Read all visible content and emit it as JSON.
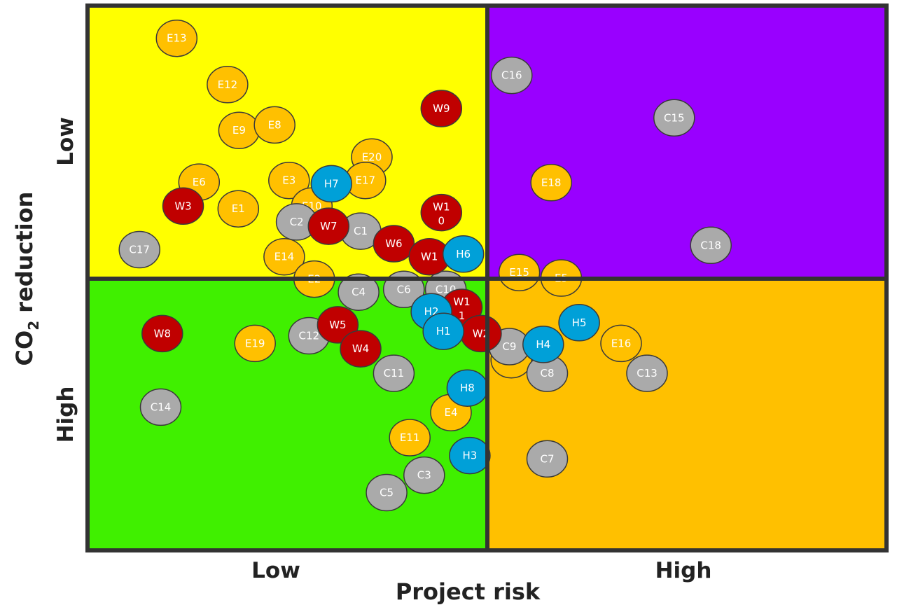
{
  "chart_data": {
    "type": "scatter",
    "xlabel": "Project risk",
    "ylabel_prefix": "CO",
    "ylabel_sub": "2",
    "ylabel_suffix": " reduction",
    "x_tick_labels": [
      "Low",
      "High"
    ],
    "y_tick_labels": [
      "Low",
      "High"
    ],
    "xlim": [
      0,
      10
    ],
    "ylim": [
      0,
      10
    ],
    "grid": false,
    "legend": "none",
    "quadrants": [
      {
        "name": "low-risk-low-co2",
        "color": "#ffff00"
      },
      {
        "name": "high-risk-low-co2",
        "color": "#9900ff"
      },
      {
        "name": "low-risk-high-co2",
        "color": "#40f000"
      },
      {
        "name": "high-risk-high-co2",
        "color": "#ffc000"
      }
    ],
    "category_colors": {
      "E": "#ffc000",
      "C": "#aaaaaa",
      "W": "#c00000",
      "H": "#00a0d8"
    },
    "points": [
      {
        "label": "E13",
        "cat": "E",
        "x": 2.23,
        "y": 9.4
      },
      {
        "label": "E12",
        "cat": "E",
        "x": 3.5,
        "y": 8.55
      },
      {
        "label": "E9",
        "cat": "E",
        "x": 3.79,
        "y": 7.71
      },
      {
        "label": "E8",
        "cat": "E",
        "x": 4.68,
        "y": 7.81
      },
      {
        "label": "E20",
        "cat": "E",
        "x": 7.11,
        "y": 7.22
      },
      {
        "label": "E6",
        "cat": "E",
        "x": 2.79,
        "y": 6.76
      },
      {
        "label": "E3",
        "cat": "E",
        "x": 5.04,
        "y": 6.79
      },
      {
        "label": "E17",
        "cat": "E",
        "x": 6.95,
        "y": 6.79
      },
      {
        "label": "E1",
        "cat": "E",
        "x": 3.77,
        "y": 6.27
      },
      {
        "label": "E10",
        "cat": "E",
        "x": 5.61,
        "y": 6.32
      },
      {
        "label": "E14",
        "cat": "E",
        "x": 4.92,
        "y": 5.39
      },
      {
        "label": "E2",
        "cat": "E",
        "x": 5.67,
        "y": 4.98
      },
      {
        "label": "E19",
        "cat": "E",
        "x": 4.19,
        "y": 3.8
      },
      {
        "label": "E11",
        "cat": "E",
        "x": 8.06,
        "y": 2.07
      },
      {
        "label": "E4",
        "cat": "E",
        "x": 9.09,
        "y": 2.53
      },
      {
        "label": "E7",
        "cat": "E",
        "x": 0.6,
        "y": 3.5
      },
      {
        "label": "E16",
        "cat": "E",
        "x": 3.35,
        "y": 3.8
      },
      {
        "label": "E15",
        "cat": "E",
        "x": 0.8,
        "y": 5.1
      },
      {
        "label": "E5",
        "cat": "E",
        "x": 1.85,
        "y": 5.0
      },
      {
        "label": "E18",
        "cat": "E",
        "x": 1.6,
        "y": 6.75
      },
      {
        "label": "C17",
        "cat": "C",
        "x": 1.3,
        "y": 5.52
      },
      {
        "label": "C2",
        "cat": "C",
        "x": 5.23,
        "y": 6.03
      },
      {
        "label": "C1",
        "cat": "C",
        "x": 6.83,
        "y": 5.86
      },
      {
        "label": "C4",
        "cat": "C",
        "x": 6.78,
        "y": 4.74
      },
      {
        "label": "C6",
        "cat": "C",
        "x": 7.91,
        "y": 4.79
      },
      {
        "label": "C10",
        "cat": "C",
        "x": 8.96,
        "y": 4.79
      },
      {
        "label": "C12",
        "cat": "C",
        "x": 5.54,
        "y": 3.94
      },
      {
        "label": "C11",
        "cat": "C",
        "x": 7.66,
        "y": 3.25
      },
      {
        "label": "C14",
        "cat": "C",
        "x": 1.83,
        "y": 2.63
      },
      {
        "label": "C3",
        "cat": "C",
        "x": 8.42,
        "y": 1.38
      },
      {
        "label": "C5",
        "cat": "C",
        "x": 7.48,
        "y": 1.06
      },
      {
        "label": "C16",
        "cat": "C",
        "x": 0.61,
        "y": 8.72
      },
      {
        "label": "C15",
        "cat": "C",
        "x": 4.68,
        "y": 7.94
      },
      {
        "label": "C18",
        "cat": "C",
        "x": 5.6,
        "y": 5.6
      },
      {
        "label": "C9",
        "cat": "C",
        "x": 0.55,
        "y": 3.74
      },
      {
        "label": "C8",
        "cat": "C",
        "x": 1.5,
        "y": 3.25
      },
      {
        "label": "C13",
        "cat": "C",
        "x": 4.0,
        "y": 3.25
      },
      {
        "label": "C7",
        "cat": "C",
        "x": 1.5,
        "y": 1.68
      },
      {
        "label": "W9",
        "cat": "W",
        "x": 8.85,
        "y": 8.11
      },
      {
        "label": "W3",
        "cat": "W",
        "x": 2.39,
        "y": 6.32
      },
      {
        "label": "W7",
        "cat": "W",
        "x": 6.03,
        "y": 5.95
      },
      {
        "label": "W10",
        "cat": "W",
        "x": 8.85,
        "y": 6.2
      },
      {
        "label": "W6",
        "cat": "W",
        "x": 7.66,
        "y": 5.63
      },
      {
        "label": "W1",
        "cat": "W",
        "x": 8.55,
        "y": 5.39
      },
      {
        "label": "W11",
        "cat": "W",
        "x": 9.36,
        "y": 4.46
      },
      {
        "label": "W5",
        "cat": "W",
        "x": 6.26,
        "y": 4.14
      },
      {
        "label": "W4",
        "cat": "W",
        "x": 6.83,
        "y": 3.7
      },
      {
        "label": "W8",
        "cat": "W",
        "x": 1.87,
        "y": 3.98
      },
      {
        "label": "W2",
        "cat": "W",
        "x": 9.84,
        "y": 3.98
      },
      {
        "label": "H7",
        "cat": "H",
        "x": 6.1,
        "y": 6.73
      },
      {
        "label": "H6",
        "cat": "H",
        "x": 9.4,
        "y": 5.44
      },
      {
        "label": "H2",
        "cat": "H",
        "x": 8.6,
        "y": 4.38
      },
      {
        "label": "H1",
        "cat": "H",
        "x": 8.9,
        "y": 4.02
      },
      {
        "label": "H8",
        "cat": "H",
        "x": 9.5,
        "y": 2.98
      },
      {
        "label": "H3",
        "cat": "H",
        "x": 9.56,
        "y": 1.74
      },
      {
        "label": "H4",
        "cat": "H",
        "x": 1.4,
        "y": 3.78
      },
      {
        "label": "H5",
        "cat": "H",
        "x": 2.3,
        "y": 4.18
      }
    ]
  }
}
